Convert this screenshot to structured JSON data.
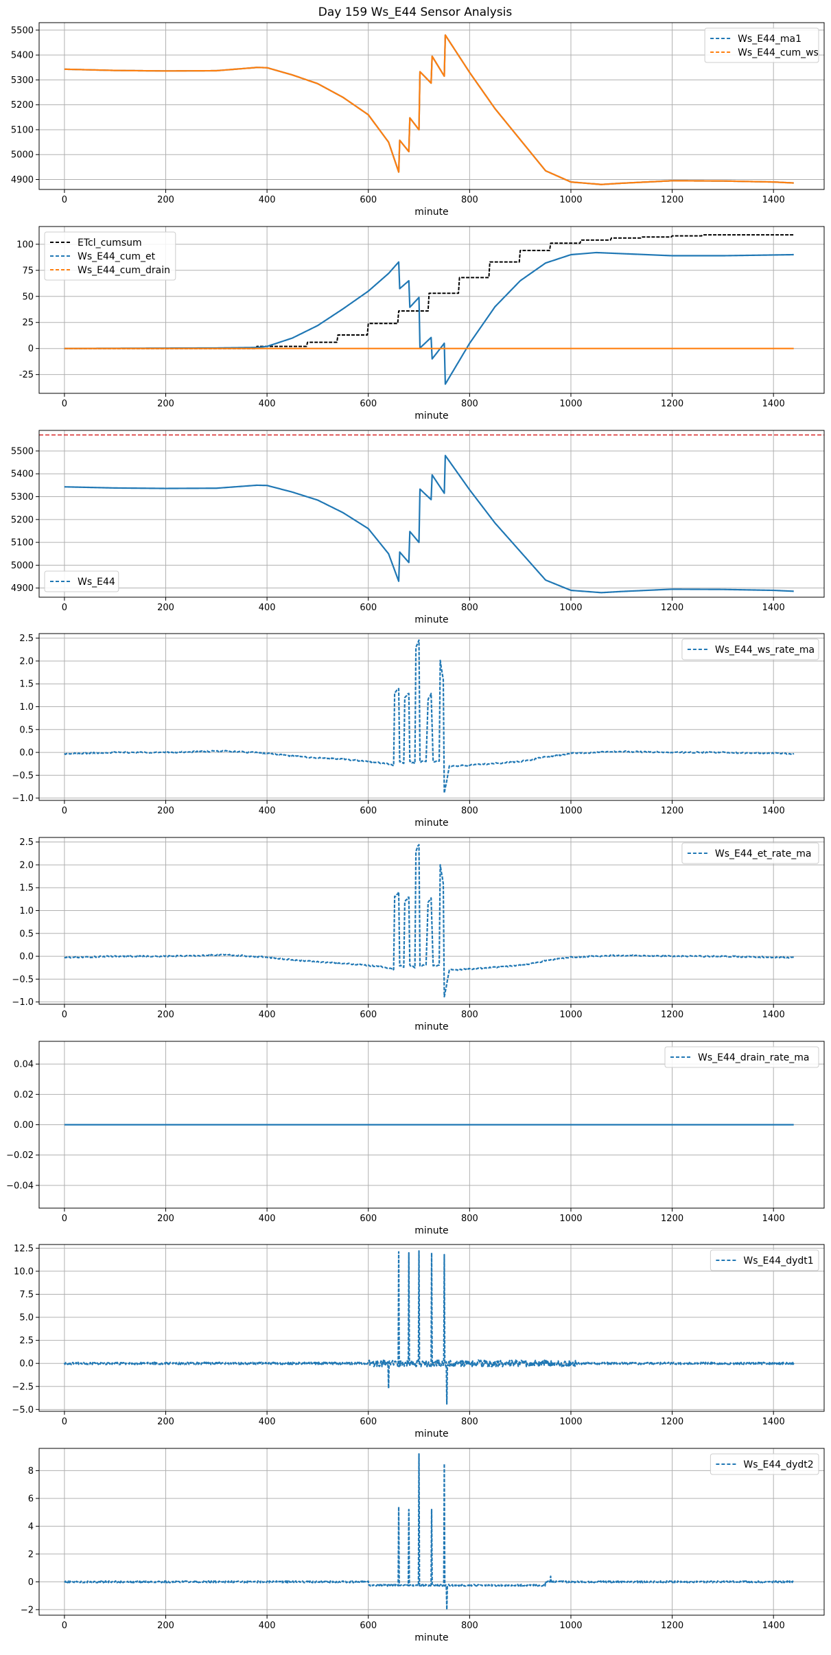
{
  "figure": {
    "title": "Day 159 Ws_E44 Sensor Analysis"
  },
  "colors": {
    "blue": "#1f77b4",
    "orange": "#ff7f0e",
    "black": "#000000",
    "red": "#d62728"
  },
  "chart_data": [
    {
      "type": "line",
      "id": "p1",
      "xlabel": "minute",
      "xlim": [
        -50,
        1500
      ],
      "ylim": [
        4860,
        5530
      ],
      "xticks": [
        0,
        200,
        400,
        600,
        800,
        1000,
        1200,
        1400
      ],
      "yticks": [
        4900,
        5000,
        5100,
        5200,
        5300,
        5400,
        5500
      ],
      "legend_loc": "top-right",
      "series": [
        {
          "name": "Ws_E44_ma1",
          "style": "dashed",
          "color": "blue",
          "profile": "ws",
          "noise": 0
        },
        {
          "name": "Ws_E44_cum_ws",
          "style": "dashed",
          "color": "orange",
          "profile": "ws",
          "noise": 0
        }
      ]
    },
    {
      "type": "line",
      "id": "p2",
      "xlabel": "minute",
      "xlim": [
        -50,
        1500
      ],
      "ylim": [
        -43,
        117
      ],
      "xticks": [
        0,
        200,
        400,
        600,
        800,
        1000,
        1200,
        1400
      ],
      "yticks": [
        -25,
        0,
        25,
        50,
        75,
        100
      ],
      "legend_loc": "top-left",
      "series": [
        {
          "name": "ETcl_cumsum",
          "style": "dashed",
          "color": "black",
          "profile": "etcl",
          "noise": 0
        },
        {
          "name": "Ws_E44_cum_et",
          "style": "dashed",
          "color": "blue",
          "profile": "cumet",
          "noise": 0
        },
        {
          "name": "Ws_E44_cum_drain",
          "style": "dashed",
          "color": "orange",
          "profile": "zero",
          "noise": 0
        }
      ]
    },
    {
      "type": "line",
      "id": "p3",
      "xlabel": "minute",
      "xlim": [
        -50,
        1500
      ],
      "ylim": [
        4860,
        5590
      ],
      "xticks": [
        0,
        200,
        400,
        600,
        800,
        1000,
        1200,
        1400
      ],
      "yticks": [
        4900,
        5000,
        5100,
        5200,
        5300,
        5400,
        5500
      ],
      "legend_loc": "bottom-left",
      "hline": {
        "y": 5570,
        "color": "red",
        "style": "dashed"
      },
      "series": [
        {
          "name": "Ws_E44",
          "style": "dashed",
          "color": "blue",
          "profile": "ws",
          "noise": 0
        }
      ]
    },
    {
      "type": "line",
      "id": "p4",
      "xlabel": "minute",
      "xlim": [
        -50,
        1500
      ],
      "ylim": [
        -1.05,
        2.6
      ],
      "xticks": [
        0,
        200,
        400,
        600,
        800,
        1000,
        1200,
        1400
      ],
      "yticks": [
        -1.0,
        -0.5,
        0.0,
        0.5,
        1.0,
        1.5,
        2.0,
        2.5
      ],
      "yfmt": 1,
      "legend_loc": "top-right",
      "series": [
        {
          "name": "Ws_E44_ws_rate_ma",
          "style": "dashed",
          "color": "blue",
          "profile": "rate",
          "noise": 0.015
        }
      ]
    },
    {
      "type": "line",
      "id": "p5",
      "xlabel": "minute",
      "xlim": [
        -50,
        1500
      ],
      "ylim": [
        -1.05,
        2.6
      ],
      "xticks": [
        0,
        200,
        400,
        600,
        800,
        1000,
        1200,
        1400
      ],
      "yticks": [
        -1.0,
        -0.5,
        0.0,
        0.5,
        1.0,
        1.5,
        2.0,
        2.5
      ],
      "yfmt": 1,
      "legend_loc": "top-right",
      "series": [
        {
          "name": "Ws_E44_et_rate_ma",
          "style": "dashed",
          "color": "blue",
          "profile": "rate",
          "noise": 0.015
        }
      ]
    },
    {
      "type": "line",
      "id": "p6",
      "xlabel": "minute",
      "xlim": [
        -50,
        1500
      ],
      "ylim": [
        -0.055,
        0.055
      ],
      "xticks": [
        0,
        200,
        400,
        600,
        800,
        1000,
        1200,
        1400
      ],
      "yticks": [
        -0.04,
        -0.02,
        0.0,
        0.02,
        0.04
      ],
      "yfmt": 2,
      "legend_loc": "top-right",
      "series": [
        {
          "name": "Ws_E44_drain_rate_ma",
          "style": "dashed",
          "color": "blue",
          "profile": "zero",
          "noise": 0
        }
      ]
    },
    {
      "type": "line",
      "id": "p7",
      "xlabel": "minute",
      "xlim": [
        -50,
        1500
      ],
      "ylim": [
        -5.2,
        12.9
      ],
      "xticks": [
        0,
        200,
        400,
        600,
        800,
        1000,
        1200,
        1400
      ],
      "yticks": [
        -5.0,
        -2.5,
        0.0,
        2.5,
        5.0,
        7.5,
        10.0,
        12.5
      ],
      "yfmt": 1,
      "legend_loc": "top-right",
      "series": [
        {
          "name": "Ws_E44_dydt1",
          "style": "dashed",
          "color": "blue",
          "profile": "dydt1",
          "noise": 0.12
        }
      ]
    },
    {
      "type": "line",
      "id": "p8",
      "xlabel": "minute",
      "xlim": [
        -50,
        1500
      ],
      "ylim": [
        -2.4,
        9.6
      ],
      "xticks": [
        0,
        200,
        400,
        600,
        800,
        1000,
        1200,
        1400
      ],
      "yticks": [
        -2,
        0,
        2,
        4,
        6,
        8
      ],
      "yfmt": 0,
      "legend_loc": "top-right",
      "series": [
        {
          "name": "Ws_E44_dydt2",
          "style": "dashed",
          "color": "blue",
          "profile": "dydt2",
          "noise": 0.03
        }
      ]
    }
  ]
}
